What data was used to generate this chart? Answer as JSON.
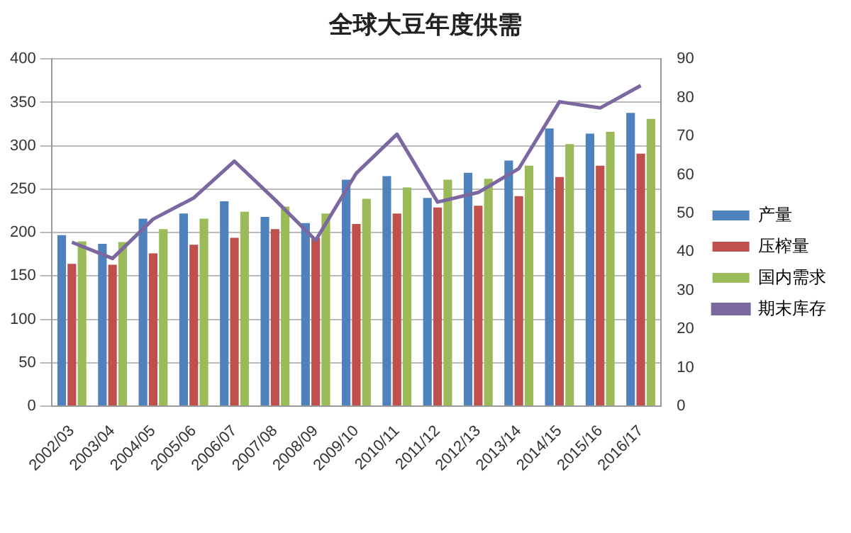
{
  "chart_data": {
    "type": "bar",
    "title": "全球大豆年度供需",
    "categories": [
      "2002/03",
      "2003/04",
      "2004/05",
      "2005/06",
      "2006/07",
      "2007/08",
      "2008/09",
      "2009/10",
      "2010/11",
      "2011/12",
      "2012/13",
      "2013/14",
      "2014/15",
      "2015/16",
      "2016/17"
    ],
    "series": [
      {
        "name": "产量",
        "color": "#4f81bd",
        "values": [
          197,
          187,
          216,
          222,
          236,
          218,
          211,
          261,
          265,
          240,
          269,
          283,
          320,
          314,
          338
        ]
      },
      {
        "name": "压榨量",
        "color": "#c0504d",
        "values": [
          164,
          163,
          176,
          186,
          194,
          204,
          194,
          210,
          222,
          229,
          231,
          242,
          264,
          277,
          291
        ]
      },
      {
        "name": "国内需求",
        "color": "#9bbb59",
        "values": [
          190,
          189,
          204,
          216,
          224,
          230,
          222,
          239,
          252,
          261,
          262,
          277,
          302,
          316,
          331
        ]
      },
      {
        "name": "期末库存",
        "type": "line",
        "axis": "y2",
        "color": "#7b68a0",
        "values": [
          42.5,
          38.3,
          48.5,
          54,
          63.5,
          53.5,
          43,
          60.4,
          70.5,
          52.9,
          55.4,
          61.6,
          78.9,
          77.3,
          83.1
        ]
      }
    ],
    "ylim": [
      0,
      400
    ],
    "yticks": [
      0,
      50,
      100,
      150,
      200,
      250,
      300,
      350,
      400
    ],
    "y2lim": [
      0,
      90
    ],
    "y2ticks": [
      0,
      10,
      20,
      30,
      40,
      50,
      60,
      70,
      80,
      90
    ],
    "grid": "y",
    "legend": "right",
    "marker": "none"
  }
}
